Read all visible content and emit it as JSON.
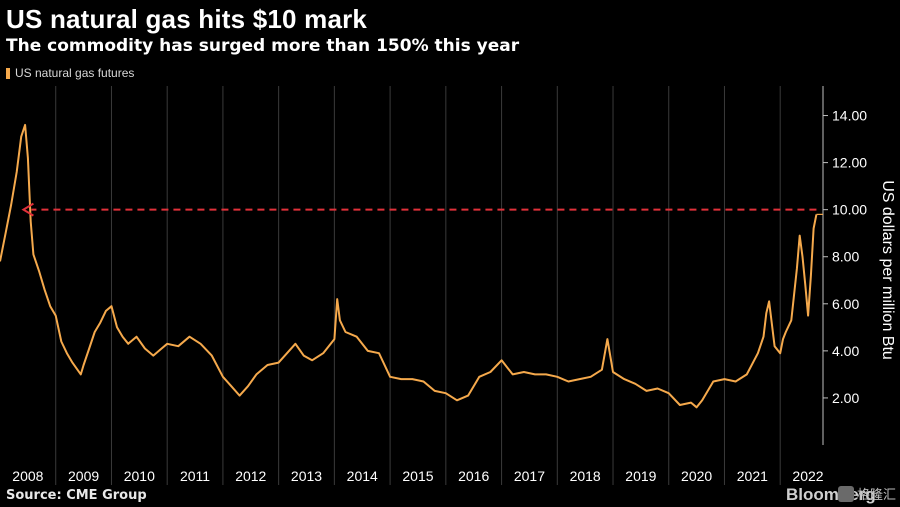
{
  "header": {
    "title": "US natural gas hits $10 mark",
    "subtitle": "The commodity has surged more than 150% this year"
  },
  "legend": {
    "label": "US natural gas futures",
    "color": "#f5a94c"
  },
  "footer": {
    "source": "Source: CME Group",
    "brand": "Bloomberg",
    "watermark": "格隆汇"
  },
  "colors": {
    "line": "#f5a94c",
    "marker": "#e0313a",
    "grid": "#3a3a3a",
    "axis": "#bfbfbf",
    "text": "#ffffff"
  },
  "chart_data": {
    "type": "line",
    "title": "US natural gas hits $10 mark",
    "subtitle": "The commodity has surged more than 150% this year",
    "ylabel": "US dollars per million Btu",
    "ylim": [
      0,
      15
    ],
    "xlim": [
      2008.0,
      2022.75
    ],
    "yticks": [
      2,
      4,
      6,
      8,
      10,
      12,
      14
    ],
    "ytick_labels": [
      "2.00",
      "4.00",
      "6.00",
      "8.00",
      "10.00",
      "12.00",
      "14.00"
    ],
    "xticks": [
      "2008",
      "2009",
      "2010",
      "2011",
      "2012",
      "2013",
      "2014",
      "2015",
      "2016",
      "2017",
      "2018",
      "2019",
      "2020",
      "2021",
      "2022"
    ],
    "grid": "vertical",
    "legend_position": "top-left",
    "annotation": {
      "type": "dashed-arrow",
      "y": 10,
      "from_x": 2022.65,
      "to_x": 2008.42
    },
    "series": [
      {
        "name": "US natural gas futures",
        "x": [
          2008.0,
          2008.1,
          2008.2,
          2008.3,
          2008.38,
          2008.45,
          2008.5,
          2008.55,
          2008.6,
          2008.7,
          2008.8,
          2008.9,
          2009.0,
          2009.1,
          2009.2,
          2009.3,
          2009.45,
          2009.5,
          2009.6,
          2009.7,
          2009.8,
          2009.9,
          2010.0,
          2010.1,
          2010.2,
          2010.3,
          2010.45,
          2010.6,
          2010.75,
          2010.9,
          2011.0,
          2011.2,
          2011.4,
          2011.6,
          2011.8,
          2012.0,
          2012.15,
          2012.3,
          2012.45,
          2012.6,
          2012.8,
          2013.0,
          2013.15,
          2013.3,
          2013.45,
          2013.6,
          2013.8,
          2014.0,
          2014.05,
          2014.1,
          2014.2,
          2014.4,
          2014.6,
          2014.8,
          2015.0,
          2015.2,
          2015.4,
          2015.6,
          2015.8,
          2016.0,
          2016.2,
          2016.4,
          2016.6,
          2016.8,
          2017.0,
          2017.2,
          2017.4,
          2017.6,
          2017.8,
          2018.0,
          2018.2,
          2018.4,
          2018.6,
          2018.8,
          2018.9,
          2019.0,
          2019.2,
          2019.4,
          2019.6,
          2019.8,
          2020.0,
          2020.2,
          2020.4,
          2020.5,
          2020.6,
          2020.8,
          2021.0,
          2021.2,
          2021.4,
          2021.6,
          2021.7,
          2021.75,
          2021.8,
          2021.9,
          2022.0,
          2022.05,
          2022.1,
          2022.2,
          2022.25,
          2022.3,
          2022.35,
          2022.4,
          2022.45,
          2022.5,
          2022.55,
          2022.6,
          2022.65
        ],
        "y": [
          7.8,
          9.0,
          10.2,
          11.6,
          13.1,
          13.6,
          12.2,
          9.5,
          8.1,
          7.4,
          6.6,
          5.9,
          5.5,
          4.4,
          3.9,
          3.5,
          3.0,
          3.4,
          4.1,
          4.8,
          5.2,
          5.7,
          5.9,
          5.0,
          4.6,
          4.3,
          4.6,
          4.1,
          3.8,
          4.1,
          4.3,
          4.2,
          4.6,
          4.3,
          3.8,
          2.9,
          2.5,
          2.1,
          2.5,
          3.0,
          3.4,
          3.5,
          3.9,
          4.3,
          3.8,
          3.6,
          3.9,
          4.5,
          6.2,
          5.3,
          4.8,
          4.6,
          4.0,
          3.9,
          2.9,
          2.8,
          2.8,
          2.7,
          2.3,
          2.2,
          1.9,
          2.1,
          2.9,
          3.1,
          3.6,
          3.0,
          3.1,
          3.0,
          3.0,
          2.9,
          2.7,
          2.8,
          2.9,
          3.2,
          4.5,
          3.1,
          2.8,
          2.6,
          2.3,
          2.4,
          2.2,
          1.7,
          1.8,
          1.6,
          1.9,
          2.7,
          2.8,
          2.7,
          3.0,
          3.9,
          4.6,
          5.6,
          6.1,
          4.2,
          3.9,
          4.5,
          4.8,
          5.3,
          6.4,
          7.5,
          8.9,
          8.0,
          6.8,
          5.5,
          7.2,
          9.2,
          9.8
        ]
      }
    ]
  }
}
